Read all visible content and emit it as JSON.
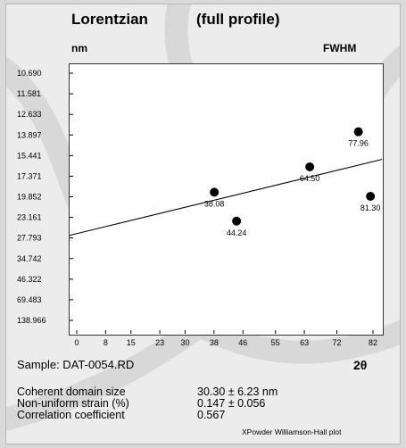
{
  "chart_data": {
    "type": "scatter",
    "title": "Lorentzian",
    "subtitle": "(full profile)",
    "ylabel": "nm",
    "right_label": "FWHM",
    "xlabel": "2θ",
    "x_ticks": [
      "0",
      "8",
      "15",
      "23",
      "30",
      "38",
      "46",
      "55",
      "63",
      "72",
      "82"
    ],
    "y_ticks": [
      "10.690",
      "11.581",
      "12.633",
      "13.897",
      "15.441",
      "17.371",
      "19.852",
      "23.161",
      "27.793",
      "34.742",
      "46.322",
      "69.483",
      "138.966"
    ],
    "points": [
      {
        "x": 38.08,
        "label": "38.08",
        "y": 19.3
      },
      {
        "x": 44.24,
        "label": "44.24",
        "y": 24.0
      },
      {
        "x": 64.5,
        "label": "64.50",
        "y": 16.5
      },
      {
        "x": 77.96,
        "label": "77.96",
        "y": 13.7
      },
      {
        "x": 81.3,
        "label": "81.30",
        "y": 19.8
      }
    ],
    "fit_line": {
      "y_at_x0": 27.2,
      "y_at_x82": 15.8
    },
    "grid": false,
    "legend": "none"
  },
  "sample": "Sample: DAT-0054.RD",
  "stats": [
    {
      "label": "Coherent domain size",
      "value": "30.30 ± 6.23 nm"
    },
    {
      "label": "Non-uniform strain (%)",
      "value": "0.147 ± 0.056"
    },
    {
      "label": "Correlation coefficient",
      "value": "0.567"
    }
  ],
  "footer": "XPowder Williamson-Hall plot",
  "colors": {
    "panel": "#ececec",
    "watermark": "#c8c8c8",
    "plot_bg": "#ffffff",
    "marker": "#000000"
  }
}
